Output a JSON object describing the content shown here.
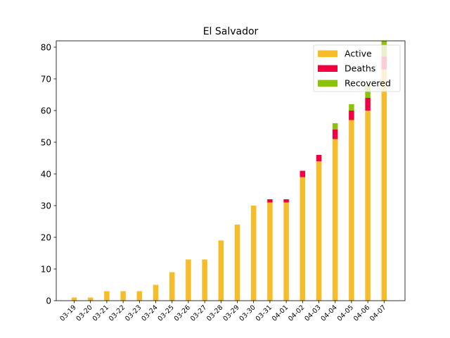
{
  "chart_data": {
    "type": "bar",
    "stacked": true,
    "title": "El Salvador",
    "xlabel": "",
    "ylabel": "",
    "ylim": [
      0,
      82
    ],
    "yticks": [
      0,
      10,
      20,
      30,
      40,
      50,
      60,
      70,
      80
    ],
    "grid": false,
    "legend_position": "top-right",
    "categories": [
      "03-19",
      "03-20",
      "03-21",
      "03-22",
      "03-23",
      "03-24",
      "03-25",
      "03-26",
      "03-27",
      "03-28",
      "03-29",
      "03-30",
      "03-31",
      "04-01",
      "04-02",
      "04-03",
      "04-04",
      "04-05",
      "04-06",
      "04-07"
    ],
    "series": [
      {
        "name": "Active",
        "color": "#f7bc2a",
        "values": [
          1,
          1,
          3,
          3,
          3,
          5,
          9,
          13,
          13,
          19,
          24,
          30,
          31,
          31,
          39,
          44,
          51,
          57,
          60,
          73
        ]
      },
      {
        "name": "Deaths",
        "color": "#f0003f",
        "values": [
          0,
          0,
          0,
          0,
          0,
          0,
          0,
          0,
          0,
          0,
          0,
          0,
          1,
          1,
          2,
          2,
          3,
          3,
          4,
          4
        ]
      },
      {
        "name": "Recovered",
        "color": "#8dc20a",
        "values": [
          0,
          0,
          0,
          0,
          0,
          0,
          0,
          0,
          0,
          0,
          0,
          0,
          0,
          0,
          0,
          0,
          2,
          2,
          4,
          5
        ]
      }
    ]
  }
}
